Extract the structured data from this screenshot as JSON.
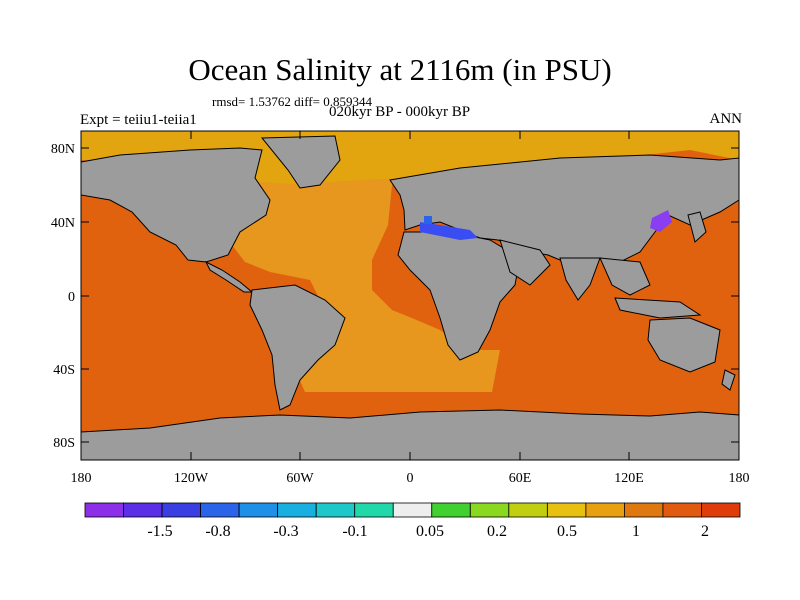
{
  "title": "Ocean Salinity at 2116m (in PSU)",
  "stats": "rmsd= 1.53762 diff= 0.859344",
  "period": "020kyr BP - 000kyr BP",
  "experiment": "Expt = teiiu1-teiia1",
  "season": "ANN",
  "map": {
    "y_ticks": [
      "80N",
      "40N",
      "0",
      "40S",
      "80S"
    ],
    "x_ticks": [
      "180",
      "120W",
      "60W",
      "0",
      "60E",
      "120E",
      "180"
    ],
    "land_color": "#9c9c9c",
    "coastline_color": "#000000",
    "region_colors": {
      "pacific_indian": "#e0620f",
      "atlantic": "#e7961e",
      "arctic": "#e3a50f",
      "mediterranean": "#3a4df2",
      "japan_sea": "#8a3ef2"
    }
  },
  "colorbar": {
    "colors": [
      "#8d2fe8",
      "#5a2fe6",
      "#3a3fe2",
      "#2a64e8",
      "#1e90e8",
      "#18b0e0",
      "#1ec8c8",
      "#20d8a8",
      "#eeeeee",
      "#40d030",
      "#8ad820",
      "#c0d010",
      "#e8c010",
      "#e8a010",
      "#e07810",
      "#e05a10",
      "#e03c0a"
    ],
    "labels": [
      "-1.5",
      "-0.8",
      "-0.3",
      "-0.1",
      "0.05",
      "0.2",
      "0.5",
      "1",
      "2"
    ]
  }
}
